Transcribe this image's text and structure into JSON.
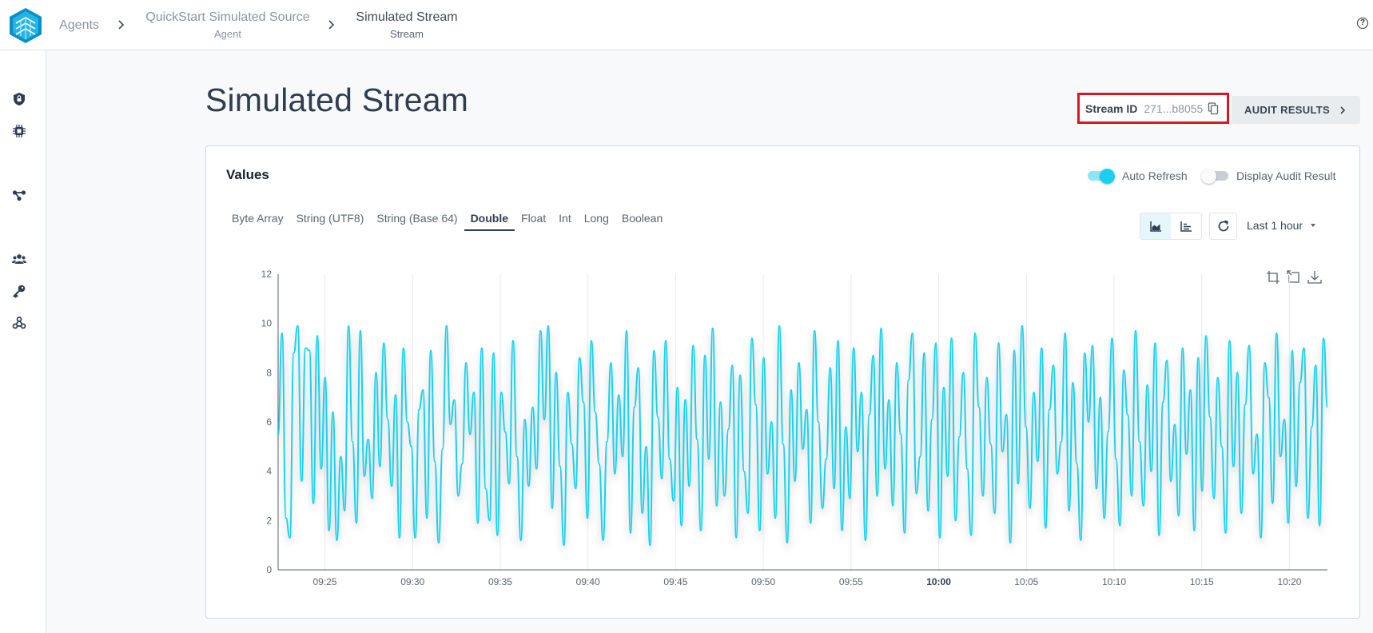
{
  "breadcrumbs": [
    {
      "label": "Agents",
      "sub": ""
    },
    {
      "label": "QuickStart Simulated Source",
      "sub": "Agent"
    },
    {
      "label": "Simulated Stream",
      "sub": "Stream"
    }
  ],
  "help_icon": "?",
  "sidebar": {
    "icons": [
      "shield-icon",
      "chip-icon",
      "graph-icon",
      "users-icon",
      "key-icon",
      "webhook-icon"
    ]
  },
  "page": {
    "title": "Simulated Stream",
    "stream_id_label": "Stream ID",
    "stream_id_value": "271...b8055",
    "audit_button": "AUDIT RESULTS"
  },
  "card": {
    "title": "Values",
    "auto_refresh": {
      "label": "Auto Refresh",
      "on": true
    },
    "display_audit": {
      "label": "Display Audit Result",
      "on": false
    },
    "tabs": [
      "Byte Array",
      "String (UTF8)",
      "String (Base 64)",
      "Double",
      "Float",
      "Int",
      "Long",
      "Boolean"
    ],
    "active_tab": "Double",
    "time_range": "Last 1 hour"
  },
  "colors": {
    "accent": "#17d2ef",
    "highlight_border": "#e0141e"
  },
  "chart_data": {
    "type": "line",
    "title": "",
    "xlabel": "",
    "ylabel": "",
    "ylim": [
      0,
      12
    ],
    "yticks": [
      0,
      2,
      4,
      6,
      8,
      10,
      12
    ],
    "xticks": [
      "09:25",
      "09:30",
      "09:35",
      "09:40",
      "09:45",
      "09:50",
      "09:55",
      "10:00",
      "10:05",
      "10:10",
      "10:15",
      "10:20"
    ],
    "xlim": [
      "09:22:20",
      "10:22:10"
    ],
    "grid": "vertical",
    "series": [
      {
        "color": "#17d2ef",
        "x_start": "09:22:20",
        "x_end": "10:22:10",
        "values": [
          5.5,
          9.6,
          2.1,
          1.3,
          8.8,
          9.9,
          3.6,
          9.0,
          8.9,
          2.7,
          9.5,
          4.1,
          7.8,
          1.6,
          6.4,
          1.2,
          4.6,
          2.4,
          9.9,
          5.2,
          1.9,
          9.7,
          3.8,
          5.3,
          2.9,
          8.0,
          4.2,
          9.2,
          6.1,
          3.4,
          7.1,
          1.3,
          9.0,
          6.0,
          5.0,
          1.3,
          6.5,
          7.3,
          2.1,
          8.9,
          4.4,
          1.1,
          4.9,
          9.9,
          5.9,
          6.9,
          3.0,
          4.3,
          8.4,
          5.5,
          7.2,
          1.9,
          9.0,
          3.3,
          2.0,
          8.8,
          1.4,
          7.2,
          5.6,
          3.5,
          9.3,
          4.6,
          1.2,
          6.1,
          3.4,
          6.6,
          4.1,
          9.7,
          6.1,
          9.9,
          2.5,
          8.0,
          4.2,
          1.0,
          7.2,
          5.1,
          3.3,
          8.6,
          6.8,
          2.1,
          9.3,
          6.4,
          4.3,
          1.2,
          5.2,
          8.4,
          3.9,
          7.1,
          4.6,
          9.7,
          1.5,
          6.6,
          8.2,
          2.3,
          5.0,
          1.0,
          8.9,
          6.2,
          3.7,
          9.3,
          4.5,
          2.8,
          7.4,
          1.8,
          6.9,
          3.4,
          9.1,
          5.3,
          1.6,
          8.7,
          4.5,
          9.8,
          2.6,
          6.8,
          3.0,
          5.7,
          8.3,
          1.3,
          7.9,
          4.0,
          2.3,
          9.4,
          6.7,
          1.6,
          8.6,
          3.9,
          6.0,
          2.1,
          9.9,
          5.1,
          1.1,
          7.3,
          3.6,
          8.4,
          4.9,
          6.5,
          1.9,
          9.7,
          6.0,
          2.5,
          4.5,
          8.2,
          3.3,
          9.3,
          1.6,
          5.8,
          2.9,
          9.0,
          4.8,
          7.2,
          1.2,
          6.3,
          8.7,
          3.0,
          9.8,
          4.1,
          6.9,
          2.6,
          8.4,
          5.5,
          1.5,
          7.7,
          9.6,
          3.1,
          4.6,
          8.8,
          2.4,
          6.1,
          9.2,
          1.3,
          7.4,
          3.8,
          9.4,
          2.0,
          5.4,
          8.0,
          4.1,
          1.4,
          9.6,
          6.6,
          3.0,
          7.8,
          5.1,
          2.3,
          9.2,
          4.8,
          6.3,
          1.1,
          8.9,
          3.5,
          9.9,
          5.8,
          2.5,
          7.2,
          4.4,
          9.0,
          1.7,
          6.5,
          8.3,
          3.9,
          5.2,
          9.6,
          2.4,
          7.6,
          4.3,
          1.2,
          8.8,
          6.0,
          9.1,
          3.3,
          7.0,
          2.1,
          5.6,
          9.4,
          4.5,
          1.8,
          8.1,
          6.3,
          3.0,
          9.7,
          5.2,
          2.6,
          7.5,
          4.0,
          9.2,
          1.4,
          6.8,
          8.5,
          3.6,
          5.9,
          2.2,
          9.0,
          4.7,
          7.3,
          1.6,
          8.6,
          3.2,
          9.5,
          6.2,
          2.9,
          7.8,
          5.0,
          1.5,
          9.3,
          4.2,
          8.0,
          2.3,
          6.7,
          9.1,
          3.9,
          5.5,
          1.3,
          8.4,
          7.0,
          2.7,
          9.6,
          4.6,
          6.1,
          1.9,
          8.9,
          3.4,
          7.6,
          9.0,
          2.1,
          5.8,
          8.3,
          1.8,
          9.4,
          6.6
        ]
      }
    ]
  }
}
